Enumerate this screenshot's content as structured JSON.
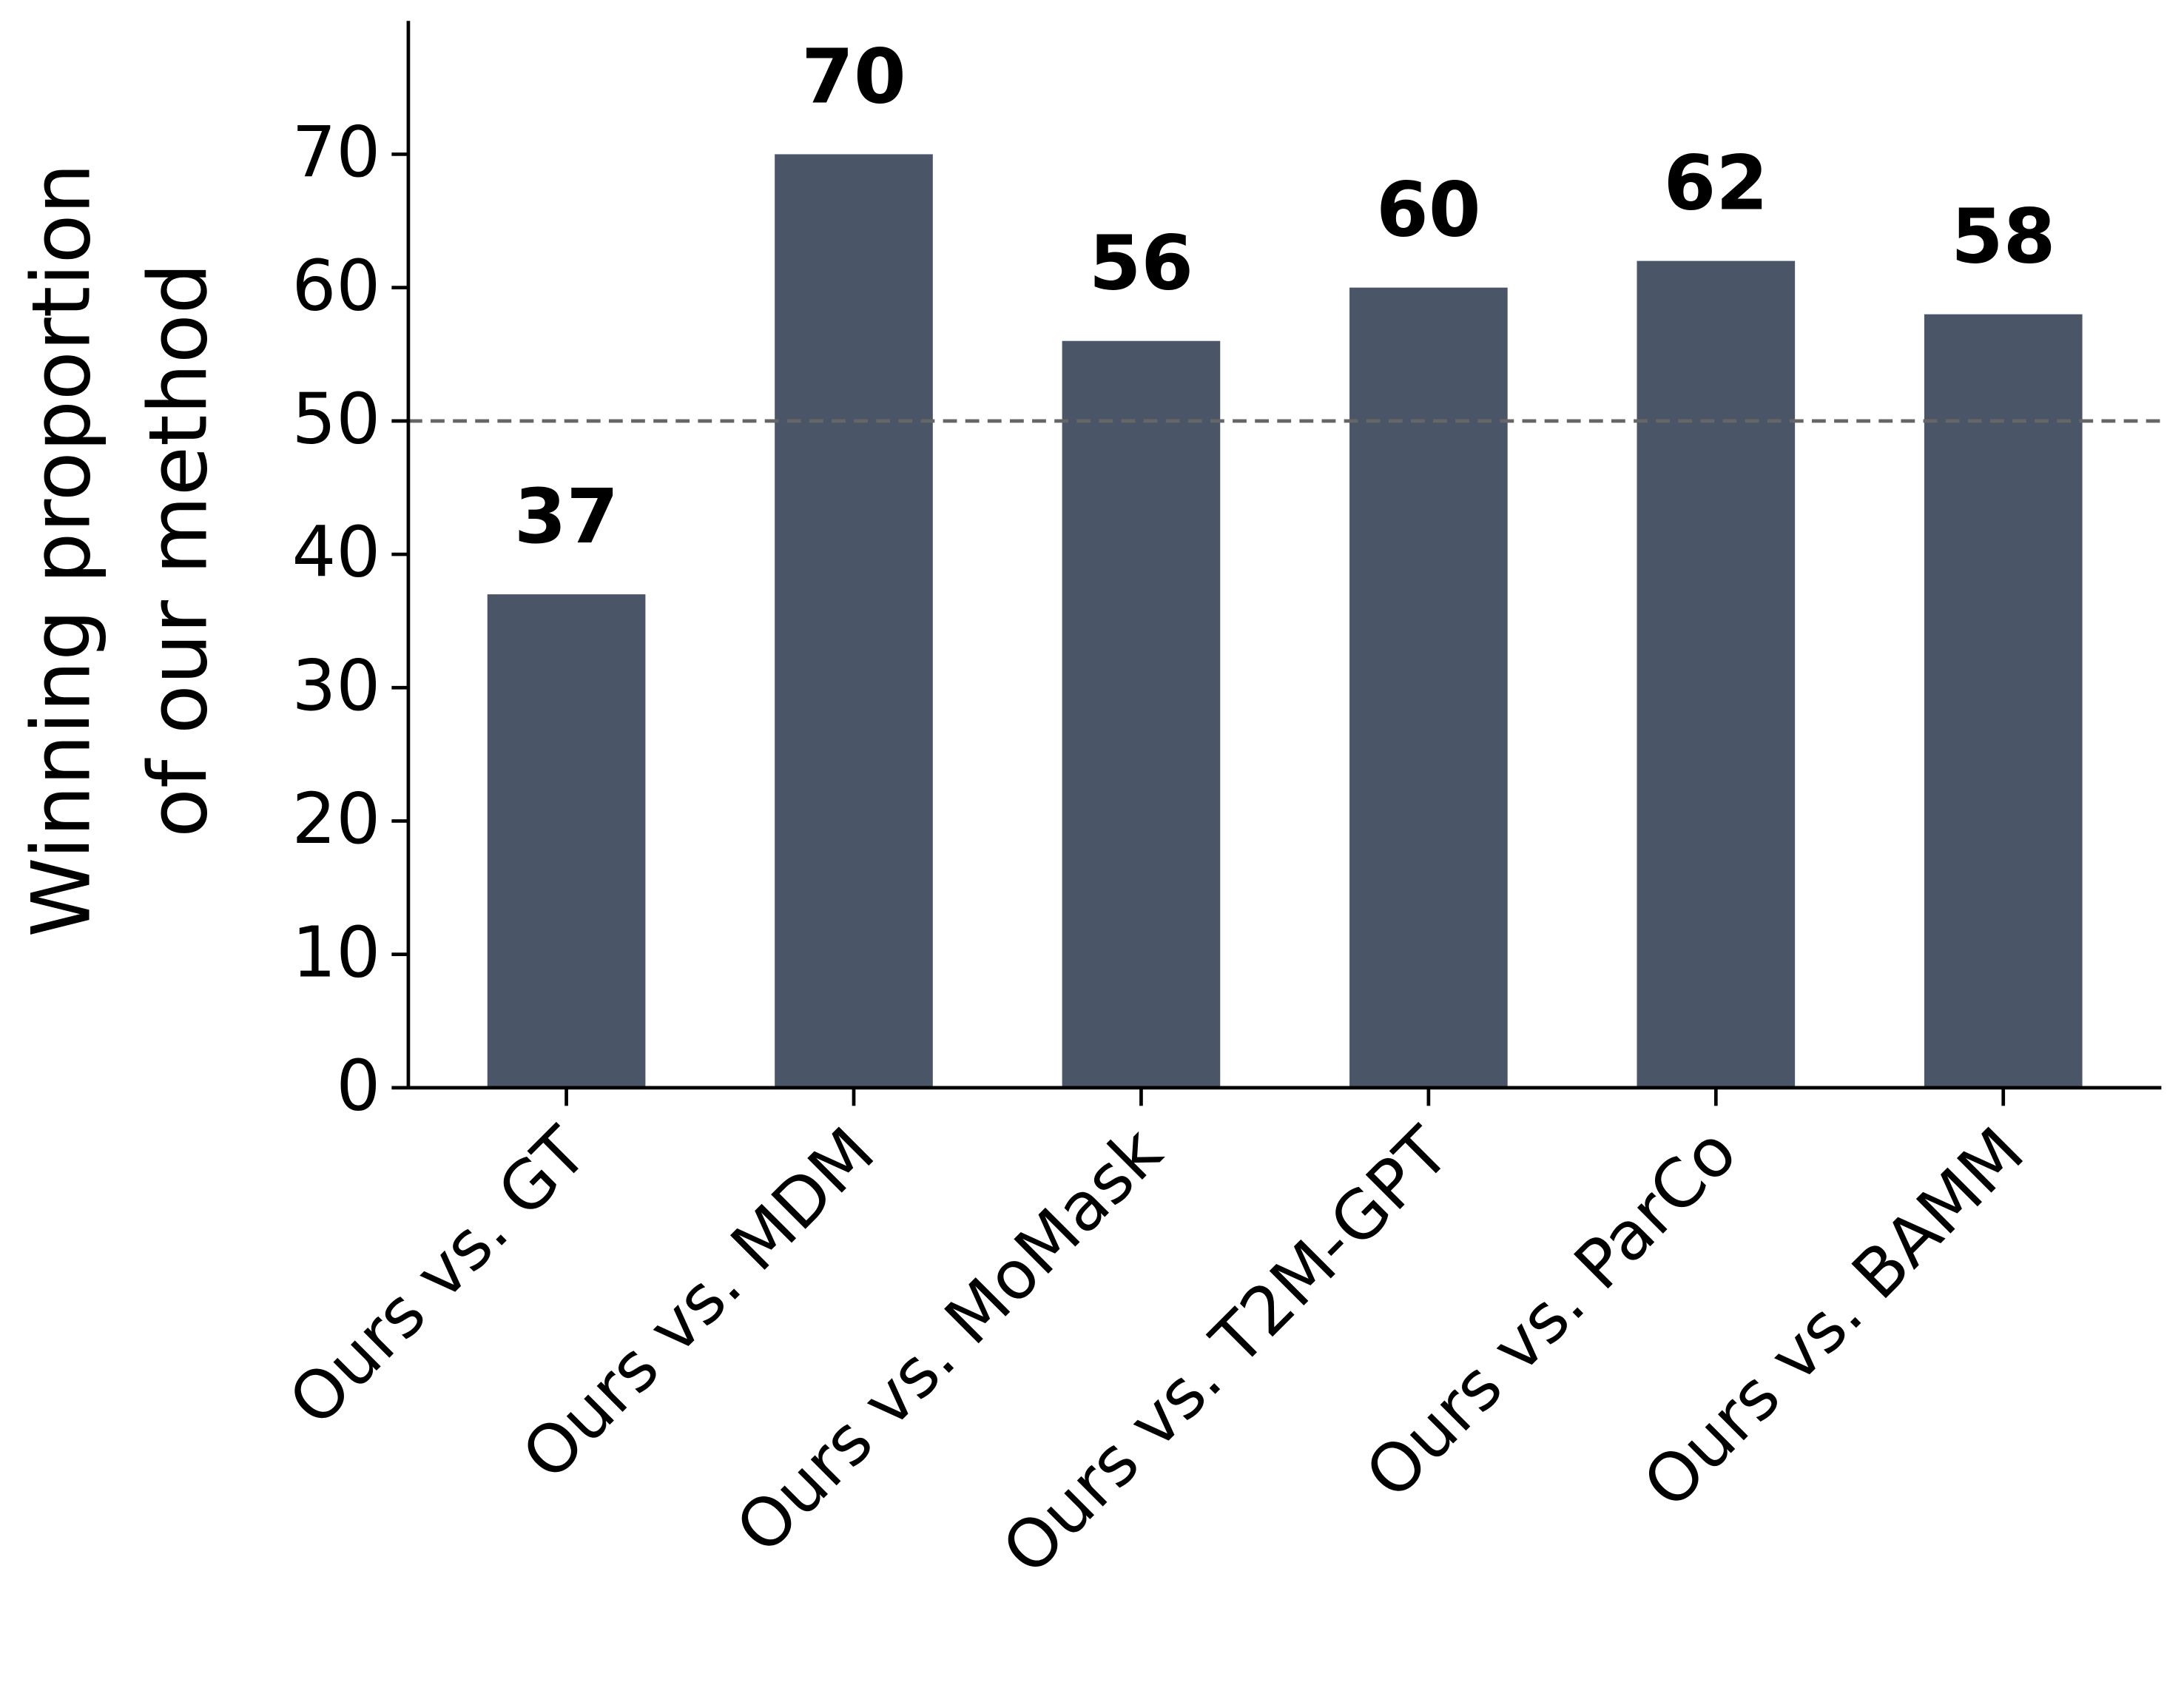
{
  "chart_data": {
    "type": "bar",
    "ylabel": [
      "Winning proportion",
      "of our method"
    ],
    "categories": [
      "Ours vs. GT",
      "Ours vs. MDM",
      "Ours vs. MoMask",
      "Ours vs. T2M-GPT",
      "Ours vs. ParCo",
      "Ours vs. BAMM"
    ],
    "values": [
      37,
      70,
      56,
      60,
      62,
      58
    ],
    "color": "#4a5568",
    "ylim": [
      0,
      80
    ],
    "yticks": [
      0,
      10,
      20,
      30,
      40,
      50,
      60,
      70
    ],
    "reference_line": 50,
    "grid": false
  }
}
